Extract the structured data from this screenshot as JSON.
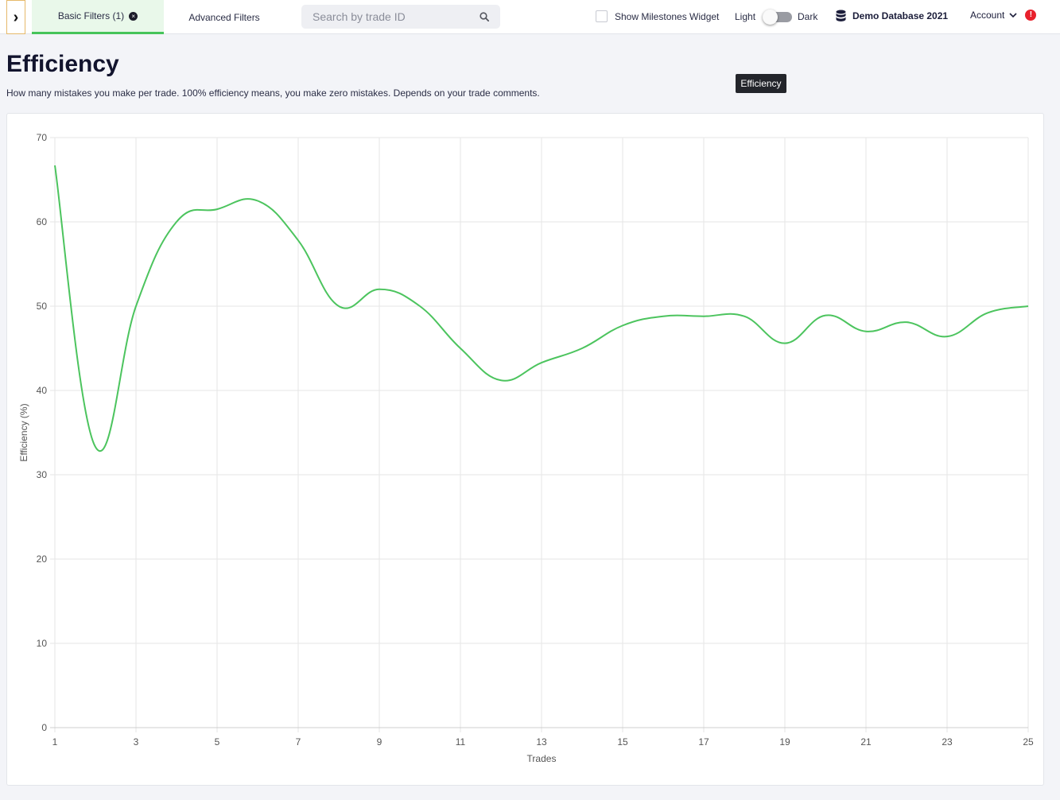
{
  "topbar": {
    "expand_glyph": "›",
    "tabs": [
      {
        "label": "Basic Filters (1)",
        "active": true
      },
      {
        "label": "Advanced Filters",
        "active": false
      }
    ],
    "clear_glyph": "×",
    "search": {
      "placeholder": "Search by trade ID",
      "value": "",
      "icon": "search-icon"
    },
    "milestones_label": "Show Milestones Widget",
    "milestones_checked": false,
    "theme": {
      "light_label": "Light",
      "dark_label": "Dark",
      "dark_enabled": false
    },
    "database": {
      "label": "Demo Database 2021",
      "icon": "database-icon"
    },
    "account": {
      "label": "Account",
      "icon": "chevron-down-icon",
      "alert": "!"
    }
  },
  "page": {
    "title": "Efficiency",
    "description": "How many mistakes you make per trade. 100% efficiency means, you make zero mistakes. Depends on your trade comments."
  },
  "tooltip": "Efficiency",
  "colors": {
    "accent": "#46c45a",
    "line": "#4cc45e",
    "alert": "#e8212c",
    "tab_active_bg": "#e9f8ea"
  },
  "chart_data": {
    "type": "line",
    "title": "",
    "xlabel": "Trades",
    "ylabel": "Efficiency (%)",
    "x": [
      1,
      2,
      3,
      4,
      5,
      6,
      7,
      8,
      9,
      10,
      11,
      12,
      13,
      14,
      15,
      16,
      17,
      18,
      19,
      20,
      21,
      22,
      23,
      24,
      25
    ],
    "x_tick_labels": [
      "1",
      "3",
      "5",
      "7",
      "9",
      "11",
      "13",
      "15",
      "17",
      "19",
      "21",
      "23",
      "25"
    ],
    "y_tick_labels": [
      "0",
      "10",
      "20",
      "30",
      "40",
      "50",
      "60",
      "70"
    ],
    "ylim": [
      0,
      70
    ],
    "xlim": [
      1,
      25
    ],
    "grid": true,
    "series": [
      {
        "values": [
          66.7,
          33.3,
          50.0,
          60.0,
          61.5,
          62.5,
          57.8,
          50.0,
          52.0,
          50.0,
          45.0,
          41.2,
          43.3,
          45.0,
          47.7,
          48.8,
          48.8,
          48.8,
          45.6,
          48.9,
          47.0,
          48.1,
          46.4,
          49.2,
          50.0
        ]
      }
    ]
  }
}
